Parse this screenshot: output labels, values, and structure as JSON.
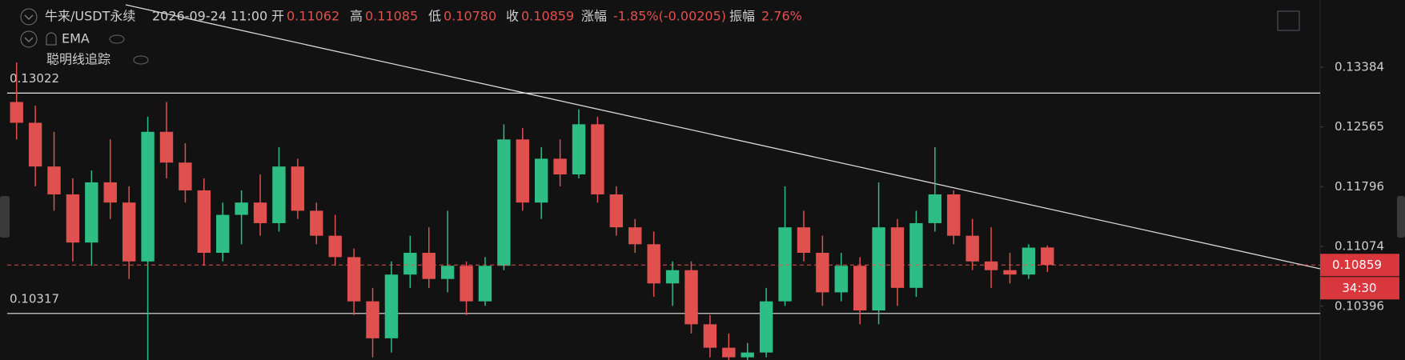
{
  "header": {
    "symbol": "牛来/USDT永续",
    "time": "2026-09-24 11:00",
    "open_label": "开",
    "open": "0.11062",
    "high_label": "高",
    "high": "0.11085",
    "low_label": "低",
    "low": "0.10780",
    "close_label": "收",
    "close": "0.10859",
    "change_label": "涨幅",
    "change": "-1.85%(-0.00205)",
    "amplitude_label": "振幅",
    "amplitude": "2.76%",
    "indicator": "EMA",
    "tool": "聪明线追踪"
  },
  "chart_data": {
    "type": "candlestick",
    "log_scale": true,
    "up_color": "#2ebd85",
    "down_color": "#e0504f",
    "ylim": [
      0.09822,
      0.14368
    ],
    "yticks": [
      0.13384,
      0.12565,
      0.11796,
      0.11074,
      0.10396
    ],
    "hlines": [
      0.13022,
      0.10317
    ],
    "last_price": 0.10859,
    "countdown": "34:30",
    "categories": [
      null,
      null,
      null,
      null,
      null,
      null,
      null,
      null,
      null,
      null,
      null,
      null,
      null,
      null,
      null,
      null,
      null,
      null,
      null,
      null,
      null,
      null,
      null,
      null,
      null,
      null,
      null,
      null,
      null,
      null,
      null,
      null,
      null,
      null,
      null,
      null,
      null,
      null,
      null,
      null,
      null,
      null,
      null,
      null,
      null,
      null,
      null,
      null,
      null,
      null,
      null,
      null,
      null,
      null,
      null,
      null
    ],
    "open": [
      0.129,
      0.1262,
      0.1205,
      0.117,
      0.1112,
      0.1185,
      0.116,
      0.109,
      0.125,
      0.121,
      0.1175,
      0.11,
      0.1145,
      0.116,
      0.1135,
      0.1205,
      0.115,
      0.112,
      0.1095,
      0.1045,
      0.1005,
      0.1075,
      0.11,
      0.107,
      0.1085,
      0.1045,
      0.1085,
      0.124,
      0.116,
      0.1215,
      0.1195,
      0.126,
      0.117,
      0.113,
      0.111,
      0.1065,
      0.108,
      0.102,
      0.0995,
      0.0985,
      0.099,
      0.1045,
      0.113,
      0.11,
      0.1055,
      0.1085,
      0.1035,
      0.113,
      0.106,
      0.1135,
      0.117,
      0.112,
      0.109,
      0.108,
      0.1075,
      0.11062
    ],
    "high": [
      0.1345,
      0.1285,
      0.125,
      0.119,
      0.12,
      0.124,
      0.118,
      0.127,
      0.129,
      0.1235,
      0.119,
      0.116,
      0.1175,
      0.1195,
      0.123,
      0.1215,
      0.116,
      0.1145,
      0.1105,
      0.106,
      0.109,
      0.112,
      0.113,
      0.115,
      0.109,
      0.1095,
      0.126,
      0.1255,
      0.123,
      0.124,
      0.128,
      0.127,
      0.118,
      0.114,
      0.1125,
      0.109,
      0.109,
      0.103,
      0.101,
      0.1,
      0.106,
      0.118,
      0.115,
      0.112,
      0.11,
      0.1095,
      0.1185,
      0.114,
      0.115,
      0.123,
      0.1175,
      0.114,
      0.113,
      0.11,
      0.111,
      0.11085
    ],
    "low": [
      0.124,
      0.118,
      0.115,
      0.109,
      0.1085,
      0.114,
      0.107,
      0.098,
      0.119,
      0.116,
      0.1085,
      0.109,
      0.111,
      0.112,
      0.1125,
      0.114,
      0.111,
      0.1085,
      0.103,
      0.0985,
      0.099,
      0.106,
      0.106,
      0.1055,
      0.103,
      0.104,
      0.108,
      0.115,
      0.114,
      0.118,
      0.119,
      0.116,
      0.112,
      0.11,
      0.105,
      0.104,
      0.101,
      0.0985,
      0.0975,
      0.0975,
      0.0985,
      0.104,
      0.109,
      0.104,
      0.1045,
      0.102,
      0.102,
      0.104,
      0.105,
      0.1125,
      0.111,
      0.108,
      0.106,
      0.1065,
      0.107,
      0.1078
    ],
    "close": [
      0.1262,
      0.1205,
      0.117,
      0.1112,
      0.1185,
      0.116,
      0.109,
      0.125,
      0.121,
      0.1175,
      0.11,
      0.1145,
      0.116,
      0.1135,
      0.1205,
      0.115,
      0.112,
      0.1095,
      0.1045,
      0.1005,
      0.1075,
      0.11,
      0.107,
      0.1085,
      0.1045,
      0.1085,
      0.124,
      0.116,
      0.1215,
      0.1195,
      0.126,
      0.117,
      0.113,
      0.111,
      0.1065,
      0.108,
      0.102,
      0.0995,
      0.0985,
      0.099,
      0.1045,
      0.113,
      0.11,
      0.1055,
      0.1085,
      0.1035,
      0.113,
      0.106,
      0.1135,
      0.117,
      0.112,
      0.109,
      0.108,
      0.1075,
      0.1106,
      0.10859
    ]
  }
}
